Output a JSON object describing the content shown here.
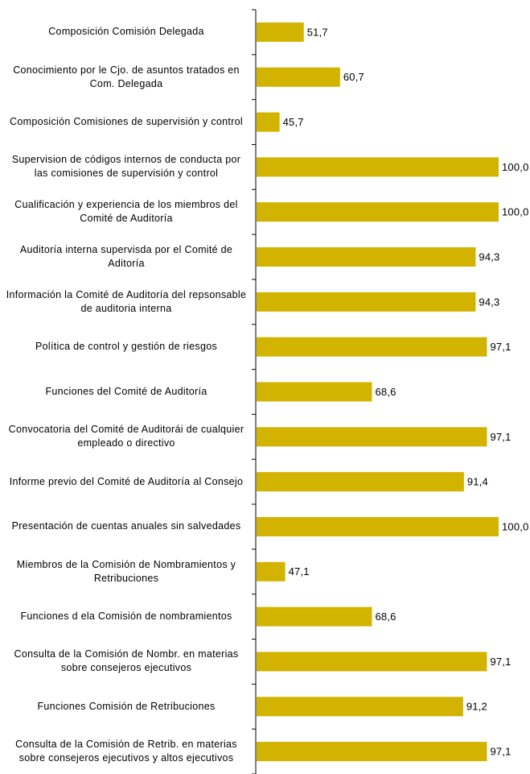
{
  "chart_data": {
    "type": "hbar",
    "categories": [
      "Composición Comisión Delegada",
      "Conocimiento por le Cjo. de asuntos tratados en Com. Delegada",
      "Composición Comisiones de supervisión y control",
      "Supervision de códigos internos de conducta por las comisiones de supervisión y control",
      "Cualificación y experiencia de los miembros del Comité de Auditoría",
      "Auditoría interna supervisda por el Comité de Aditoría",
      "Información la Comité de Auditoría del repsonsable de auditoria interna",
      "Política de control y gestión de riesgos",
      "Funciones del Comité de Auditoría",
      "Convocatoria del Comité de Auditorái de cualquier empleado o directivo",
      "Informe previo del Comité de Auditoría al Consejo",
      "Presentación de cuentas anuales sin salvedades",
      "Miembros de la Comisión de Nombramientos y Retribuciones",
      "Funciones d ela Comisión de nombramientos",
      "Consulta de la Comisión de Nombr. en materias sobre consejeros ejecutivos",
      "Funciones Comisión de Retribuciones",
      "Consulta de la Comisión de Retrib. en materias sobre consejeros ejecutivos y altos ejecutivos"
    ],
    "values": [
      51.7,
      60.7,
      45.7,
      100,
      100,
      94.3,
      94.3,
      97.1,
      68.6,
      97.1,
      91.4,
      100,
      47.1,
      68.6,
      97.1,
      91.2,
      97.1
    ],
    "value_labels": [
      "51,7",
      "60,7",
      "45,7",
      "100,0",
      "100,0",
      "94,3",
      "94,3",
      "97,1",
      "68,6",
      "97,1",
      "91,4",
      "100,0",
      "47,1",
      "68,6",
      "97,1",
      "91,2",
      "97,1"
    ],
    "color": "#d2b300",
    "xlim": [
      40,
      100
    ]
  }
}
